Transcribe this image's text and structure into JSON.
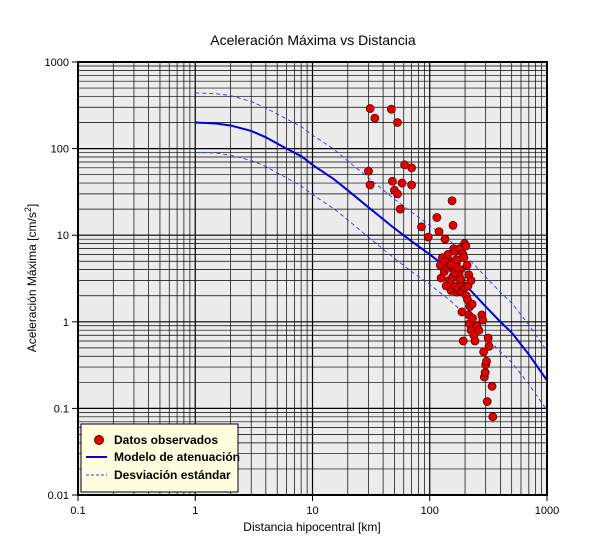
{
  "chart_data": {
    "type": "scatter",
    "title": "Aceleración Máxima vs Distancia",
    "xlabel": "Distancia hipocentral [km]",
    "ylabel_main": "Aceleración Máxima [cm/s",
    "ylabel_sup": "2",
    "ylabel_tail": "]",
    "x_scale": "log",
    "y_scale": "log",
    "xlim": [
      0.1,
      1000
    ],
    "ylim": [
      0.01,
      1000
    ],
    "x_ticks": [
      {
        "v": 0.1,
        "label": "0.1"
      },
      {
        "v": 1,
        "label": "1"
      },
      {
        "v": 10,
        "label": "10"
      },
      {
        "v": 100,
        "label": "100"
      },
      {
        "v": 1000,
        "label": "1000"
      }
    ],
    "y_ticks": [
      {
        "v": 0.01,
        "label": "0.01"
      },
      {
        "v": 0.1,
        "label": "0.1"
      },
      {
        "v": 1,
        "label": "1"
      },
      {
        "v": 10,
        "label": "10"
      },
      {
        "v": 100,
        "label": "100"
      },
      {
        "v": 1000,
        "label": "1000"
      }
    ],
    "grid": true,
    "legend_position": "bottom-left",
    "colors": {
      "background": "#ececec",
      "points": "#e00000",
      "points_edge": "#600000",
      "model": "#0000dd",
      "deviation": "#3333ff",
      "legend_bg": "#ffffe0"
    },
    "series": [
      {
        "name": "Datos observados",
        "kind": "points",
        "points": [
          [
            31,
            290
          ],
          [
            34,
            225
          ],
          [
            47,
            285
          ],
          [
            53,
            200
          ],
          [
            30,
            55
          ],
          [
            31,
            38
          ],
          [
            48,
            42
          ],
          [
            50,
            33
          ],
          [
            53,
            30
          ],
          [
            56,
            20
          ],
          [
            58,
            40
          ],
          [
            61,
            65
          ],
          [
            70,
            60
          ],
          [
            70,
            38
          ],
          [
            85,
            12.5
          ],
          [
            97,
            9.5
          ],
          [
            115,
            16
          ],
          [
            120,
            11
          ],
          [
            135,
            9
          ],
          [
            148,
            5
          ],
          [
            155,
            25
          ],
          [
            158,
            13
          ],
          [
            160,
            7
          ],
          [
            165,
            6.5
          ],
          [
            170,
            5
          ],
          [
            180,
            7
          ],
          [
            182,
            4
          ],
          [
            192,
            6
          ],
          [
            195,
            5.5
          ],
          [
            198,
            8
          ],
          [
            203,
            7.5
          ],
          [
            208,
            4.5
          ],
          [
            215,
            3.5
          ],
          [
            123,
            4.5
          ],
          [
            128,
            5.5
          ],
          [
            133,
            3.8
          ],
          [
            136,
            5
          ],
          [
            140,
            4.2
          ],
          [
            145,
            3
          ],
          [
            150,
            2.8
          ],
          [
            152,
            2.3
          ],
          [
            157,
            3.3
          ],
          [
            162,
            4
          ],
          [
            166,
            2.6
          ],
          [
            170,
            2.2
          ],
          [
            175,
            2.4
          ],
          [
            178,
            3.5
          ],
          [
            185,
            2.8
          ],
          [
            188,
            2.2
          ],
          [
            200,
            2.5
          ],
          [
            205,
            2
          ],
          [
            210,
            1.8
          ],
          [
            212,
            2.6
          ],
          [
            220,
            1.5
          ],
          [
            225,
            3
          ],
          [
            230,
            1.6
          ],
          [
            125,
            3.2
          ],
          [
            138,
            2.6
          ],
          [
            143,
            6
          ],
          [
            148,
            4.5
          ],
          [
            153,
            4.6
          ],
          [
            163,
            3.7
          ],
          [
            168,
            5.2
          ],
          [
            173,
            4.2
          ],
          [
            183,
            3.1
          ],
          [
            188,
            1.3
          ],
          [
            193,
            0.6
          ],
          [
            215,
            1.2
          ],
          [
            218,
            0.95
          ],
          [
            225,
            0.8
          ],
          [
            232,
            1.1
          ],
          [
            238,
            0.7
          ],
          [
            243,
            0.6
          ],
          [
            252,
            0.9
          ],
          [
            262,
            0.8
          ],
          [
            278,
            1.2
          ],
          [
            283,
            1.05
          ],
          [
            288,
            0.45
          ],
          [
            292,
            0.23
          ],
          [
            297,
            0.26
          ],
          [
            300,
            0.32
          ],
          [
            305,
            0.35
          ],
          [
            309,
            0.12
          ],
          [
            315,
            0.65
          ],
          [
            320,
            0.52
          ],
          [
            340,
            0.18
          ],
          [
            345,
            0.08
          ]
        ]
      },
      {
        "name": "Modelo de atenuación",
        "kind": "line",
        "points": [
          [
            1,
            200
          ],
          [
            1.5,
            195
          ],
          [
            2,
            185
          ],
          [
            3,
            160
          ],
          [
            4,
            135
          ],
          [
            6,
            100
          ],
          [
            8,
            82
          ],
          [
            10,
            65
          ],
          [
            15,
            45
          ],
          [
            20,
            33
          ],
          [
            30,
            21
          ],
          [
            50,
            12
          ],
          [
            70,
            8.5
          ],
          [
            100,
            6
          ],
          [
            150,
            3.9
          ],
          [
            200,
            2.7
          ],
          [
            300,
            1.5
          ],
          [
            400,
            1.0
          ],
          [
            500,
            0.75
          ],
          [
            700,
            0.42
          ],
          [
            1000,
            0.21
          ]
        ]
      },
      {
        "name": "Desviación estándar",
        "kind": "dashed-pair",
        "upper": [
          [
            1,
            440
          ],
          [
            1.5,
            430
          ],
          [
            2,
            410
          ],
          [
            3,
            350
          ],
          [
            4,
            295
          ],
          [
            6,
            220
          ],
          [
            8,
            180
          ],
          [
            10,
            143
          ],
          [
            15,
            100
          ],
          [
            20,
            72
          ],
          [
            30,
            46
          ],
          [
            50,
            26
          ],
          [
            70,
            18.5
          ],
          [
            100,
            13
          ],
          [
            150,
            8.5
          ],
          [
            200,
            5.9
          ],
          [
            300,
            3.3
          ],
          [
            400,
            2.2
          ],
          [
            500,
            1.65
          ],
          [
            700,
            0.92
          ],
          [
            1000,
            0.46
          ]
        ],
        "lower": [
          [
            1,
            90
          ],
          [
            1.5,
            89
          ],
          [
            2,
            84
          ],
          [
            3,
            73
          ],
          [
            4,
            62
          ],
          [
            6,
            46
          ],
          [
            8,
            37
          ],
          [
            10,
            29.5
          ],
          [
            15,
            20.5
          ],
          [
            20,
            15
          ],
          [
            30,
            9.5
          ],
          [
            50,
            5.4
          ],
          [
            70,
            3.8
          ],
          [
            100,
            2.7
          ],
          [
            150,
            1.75
          ],
          [
            200,
            1.22
          ],
          [
            300,
            0.68
          ],
          [
            400,
            0.45
          ],
          [
            500,
            0.34
          ],
          [
            700,
            0.19
          ],
          [
            1000,
            0.095
          ]
        ]
      }
    ]
  }
}
